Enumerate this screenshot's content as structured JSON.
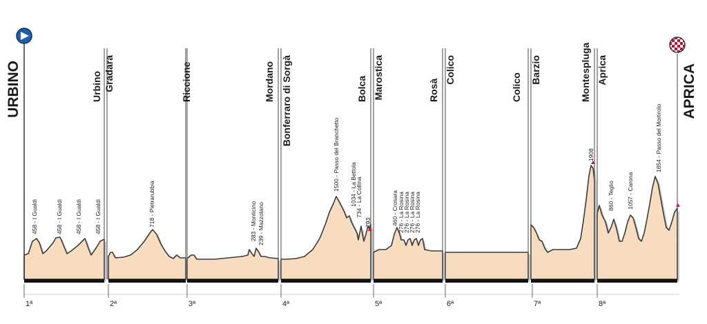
{
  "profile": {
    "start_town": "URBINO",
    "finish_town": "APRICA",
    "colors": {
      "fill": "#f7dcbf",
      "outline": "#3a3a3a",
      "shadow": "#9a9a9a",
      "base": "#111111",
      "summit": "#d11a2a"
    },
    "start_icon": "play-arrow-icon",
    "finish_icon": "checkered-flag-icon",
    "stages": [
      {
        "number": "1ª",
        "left_label": "",
        "right_label": "Urbino"
      },
      {
        "number": "2ª",
        "left_label": "Gradara",
        "right_label": "Riccione"
      },
      {
        "number": "3ª",
        "left_label": "",
        "right_label": "Mordano"
      },
      {
        "number": "4ª",
        "left_label": "Bonferraro di Sorgà",
        "right_label": "Bolca"
      },
      {
        "number": "5ª",
        "left_label": "Marostica",
        "right_label": "Rosà"
      },
      {
        "number": "6ª",
        "left_label": "Colico",
        "right_label": "Colico"
      },
      {
        "number": "7ª",
        "left_label": "Barzio",
        "right_label": "Montespluga"
      },
      {
        "number": "8ª",
        "left_label": "Aprica",
        "right_label": ""
      }
    ],
    "peaks": [
      "458 - I Gualdi",
      "458 - I Gualdi",
      "458 - I Gualdi",
      "458 - I Gualdi",
      "718 - Pietrarubbia",
      "283 - Monticino",
      "239 - Mazzolano",
      "1500 - Passo del Branchetto",
      "1034 - La Bettola",
      "734 - La Collina",
      "793",
      "460 - Crosara",
      "276 - La Rosina",
      "276 - La Rosina",
      "276 - La Rosina",
      "276 - La Rosina",
      "1908",
      "860 - Teglio",
      "1057 - Carona",
      "1854 - Passo del Mortirolo"
    ]
  }
}
